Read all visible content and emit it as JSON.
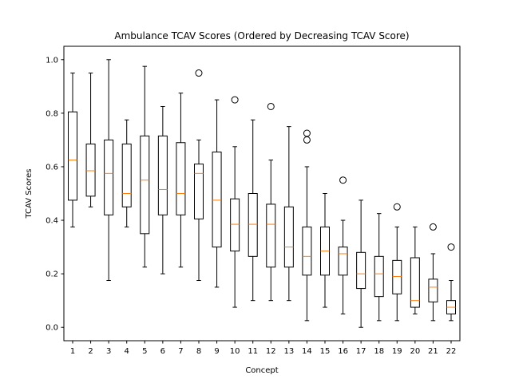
{
  "chart_data": {
    "type": "boxplot",
    "title": "Ambulance TCAV Scores (Ordered by Decreasing TCAV Score)",
    "xlabel": "Concept",
    "ylabel": "TCAV Scores",
    "ylim": [
      -0.05,
      1.05
    ],
    "yticks": [
      "0.0",
      "0.2",
      "0.4",
      "0.6",
      "0.8",
      "1.0"
    ],
    "grid": false,
    "categories": [
      "1",
      "2",
      "3",
      "4",
      "5",
      "6",
      "7",
      "8",
      "9",
      "10",
      "11",
      "12",
      "13",
      "14",
      "15",
      "16",
      "17",
      "18",
      "19",
      "20",
      "21",
      "22"
    ],
    "boxes": [
      {
        "whislo": 0.375,
        "q1": 0.475,
        "med": 0.625,
        "q3": 0.805,
        "whishi": 0.95,
        "fliers": []
      },
      {
        "whislo": 0.45,
        "q1": 0.49,
        "med": 0.585,
        "q3": 0.685,
        "whishi": 0.95,
        "fliers": []
      },
      {
        "whislo": 0.175,
        "q1": 0.42,
        "med": 0.575,
        "q3": 0.7,
        "whishi": 1.0,
        "fliers": []
      },
      {
        "whislo": 0.375,
        "q1": 0.45,
        "med": 0.5,
        "q3": 0.685,
        "whishi": 0.775,
        "fliers": []
      },
      {
        "whislo": 0.225,
        "q1": 0.35,
        "med": 0.55,
        "q3": 0.715,
        "whishi": 0.975,
        "fliers": []
      },
      {
        "whislo": 0.2,
        "q1": 0.42,
        "med": 0.515,
        "q3": 0.715,
        "whishi": 0.825,
        "fliers": []
      },
      {
        "whislo": 0.225,
        "q1": 0.42,
        "med": 0.5,
        "q3": 0.69,
        "whishi": 0.875,
        "fliers": []
      },
      {
        "whislo": 0.175,
        "q1": 0.405,
        "med": 0.575,
        "q3": 0.61,
        "whishi": 0.7,
        "fliers": [
          0.95
        ]
      },
      {
        "whislo": 0.15,
        "q1": 0.3,
        "med": 0.475,
        "q3": 0.655,
        "whishi": 0.85,
        "fliers": []
      },
      {
        "whislo": 0.075,
        "q1": 0.285,
        "med": 0.385,
        "q3": 0.48,
        "whishi": 0.675,
        "fliers": [
          0.85
        ]
      },
      {
        "whislo": 0.1,
        "q1": 0.265,
        "med": 0.385,
        "q3": 0.5,
        "whishi": 0.775,
        "fliers": []
      },
      {
        "whislo": 0.1,
        "q1": 0.225,
        "med": 0.385,
        "q3": 0.46,
        "whishi": 0.625,
        "fliers": [
          0.825
        ]
      },
      {
        "whislo": 0.1,
        "q1": 0.225,
        "med": 0.3,
        "q3": 0.45,
        "whishi": 0.75,
        "fliers": []
      },
      {
        "whislo": 0.025,
        "q1": 0.195,
        "med": 0.265,
        "q3": 0.375,
        "whishi": 0.6,
        "fliers": [
          0.7,
          0.725
        ]
      },
      {
        "whislo": 0.075,
        "q1": 0.195,
        "med": 0.285,
        "q3": 0.375,
        "whishi": 0.5,
        "fliers": []
      },
      {
        "whislo": 0.05,
        "q1": 0.195,
        "med": 0.275,
        "q3": 0.3,
        "whishi": 0.4,
        "fliers": [
          0.55
        ]
      },
      {
        "whislo": 0.0,
        "q1": 0.145,
        "med": 0.2,
        "q3": 0.28,
        "whishi": 0.475,
        "fliers": []
      },
      {
        "whislo": 0.025,
        "q1": 0.115,
        "med": 0.2,
        "q3": 0.265,
        "whishi": 0.425,
        "fliers": []
      },
      {
        "whislo": 0.025,
        "q1": 0.125,
        "med": 0.19,
        "q3": 0.25,
        "whishi": 0.375,
        "fliers": [
          0.45
        ]
      },
      {
        "whislo": 0.05,
        "q1": 0.075,
        "med": 0.1,
        "q3": 0.26,
        "whishi": 0.375,
        "fliers": []
      },
      {
        "whislo": 0.025,
        "q1": 0.095,
        "med": 0.15,
        "q3": 0.18,
        "whishi": 0.275,
        "fliers": [
          0.375
        ]
      },
      {
        "whislo": 0.025,
        "q1": 0.05,
        "med": 0.075,
        "q3": 0.1,
        "whishi": 0.175,
        "fliers": [
          0.3
        ]
      }
    ],
    "colors": {
      "box": "#000000",
      "median": "#ff7f0e",
      "flier": "#000000"
    }
  }
}
